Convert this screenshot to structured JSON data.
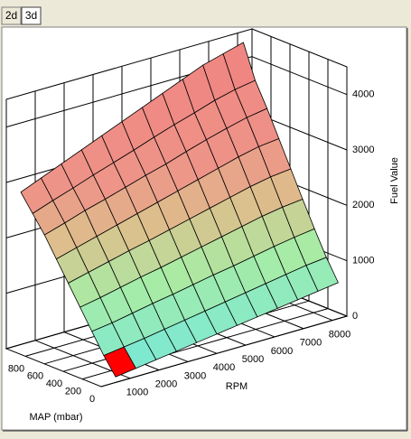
{
  "buttons": [
    "2d",
    "3d"
  ],
  "chart_data": {
    "type": "surface",
    "xlabel": "RPM",
    "ylabel": "MAP (mbar)",
    "zlabel": "Fuel Value",
    "x": [
      500,
      1200,
      1900,
      2600,
      3300,
      4000,
      4700,
      5400,
      6100,
      6800,
      7500,
      8200
    ],
    "y": [
      0,
      125,
      250,
      375,
      500,
      625,
      750,
      875,
      1000
    ],
    "values": [
      [
        100,
        150,
        200,
        250,
        300,
        350,
        400,
        450,
        500,
        550,
        600,
        650
      ],
      [
        400,
        450,
        500,
        560,
        620,
        680,
        740,
        800,
        860,
        920,
        980,
        1020
      ],
      [
        750,
        800,
        870,
        940,
        1000,
        1070,
        1140,
        1200,
        1270,
        1340,
        1400,
        1450
      ],
      [
        1100,
        1170,
        1250,
        1330,
        1400,
        1480,
        1560,
        1640,
        1720,
        1800,
        1860,
        1900
      ],
      [
        1450,
        1540,
        1630,
        1720,
        1800,
        1890,
        1980,
        2070,
        2160,
        2250,
        2320,
        2360
      ],
      [
        1800,
        1900,
        2000,
        2100,
        2200,
        2300,
        2400,
        2500,
        2600,
        2700,
        2780,
        2820
      ],
      [
        2150,
        2260,
        2380,
        2480,
        2590,
        2700,
        2800,
        2920,
        3030,
        3130,
        3220,
        3280
      ],
      [
        2450,
        2580,
        2700,
        2830,
        2950,
        3070,
        3200,
        3320,
        3430,
        3550,
        3640,
        3700
      ],
      [
        2750,
        2900,
        3050,
        3200,
        3350,
        3500,
        3650,
        3800,
        3950,
        4100,
        4200,
        4300
      ]
    ],
    "xlim": [
      0,
      8500
    ],
    "xticks": [
      1000,
      2000,
      3000,
      4000,
      5000,
      6000,
      7000,
      8000
    ],
    "ylim": [
      0,
      1000
    ],
    "yticks": [
      0,
      200,
      400,
      600,
      800
    ],
    "zlim": [
      0,
      4500
    ],
    "zticks": [
      0,
      1000,
      2000,
      3000,
      4000
    ],
    "grid": true,
    "colormap": [
      {
        "at": 0,
        "color": "#70e8e0"
      },
      {
        "at": 1200,
        "color": "#a8eca4"
      },
      {
        "at": 2000,
        "color": "#dcc08c"
      },
      {
        "at": 2700,
        "color": "#ee9488"
      },
      {
        "at": 4500,
        "color": "#f08080"
      }
    ],
    "selected_cell": [
      0,
      0
    ],
    "selected_color": "#ff0000"
  }
}
